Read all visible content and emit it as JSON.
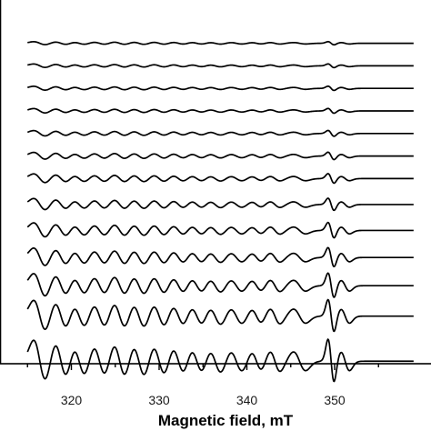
{
  "chart_data": {
    "type": "line",
    "title": "",
    "xlabel": "Magnetic field, mT",
    "ylabel": "",
    "xlim": [
      315,
      359
    ],
    "x_ticks": [
      320,
      330,
      340,
      350
    ],
    "grid": false,
    "legend": "none",
    "line_color": "#000000",
    "series": [
      {
        "offset": 13.0,
        "scale": 0.3
      },
      {
        "offset": 12.0,
        "scale": 0.35
      },
      {
        "offset": 11.0,
        "scale": 0.4
      },
      {
        "offset": 10.0,
        "scale": 0.45
      },
      {
        "offset": 9.0,
        "scale": 0.55
      },
      {
        "offset": 8.0,
        "scale": 0.7
      },
      {
        "offset": 7.0,
        "scale": 0.9
      },
      {
        "offset": 5.85,
        "scale": 1.15
      },
      {
        "offset": 4.7,
        "scale": 1.45
      },
      {
        "offset": 3.5,
        "scale": 1.8
      },
      {
        "offset": 2.25,
        "scale": 2.3
      },
      {
        "offset": 0.9,
        "scale": 3.0
      },
      {
        "offset": -1.1,
        "scale": 4.0
      }
    ],
    "lines": [
      {
        "center": 316.4,
        "amp": 1.0,
        "width": 0.7
      },
      {
        "center": 318.8,
        "amp": 0.9,
        "width": 0.7
      },
      {
        "center": 320.9,
        "amp": 0.75,
        "width": 0.7
      },
      {
        "center": 323.2,
        "amp": 0.75,
        "width": 0.7
      },
      {
        "center": 325.5,
        "amp": 0.85,
        "width": 0.7
      },
      {
        "center": 327.7,
        "amp": 0.8,
        "width": 0.7
      },
      {
        "center": 330.0,
        "amp": 0.75,
        "width": 0.7
      },
      {
        "center": 332.2,
        "amp": 0.7,
        "width": 0.7
      },
      {
        "center": 334.3,
        "amp": 0.65,
        "width": 0.7
      },
      {
        "center": 336.4,
        "amp": 0.6,
        "width": 0.7
      },
      {
        "center": 338.8,
        "amp": 0.5,
        "width": 0.7
      },
      {
        "center": 341.1,
        "amp": 0.45,
        "width": 0.6
      },
      {
        "center": 343.2,
        "amp": 0.5,
        "width": 0.6
      },
      {
        "center": 346.0,
        "amp": 0.45,
        "width": 0.7
      },
      {
        "center": 349.6,
        "amp": 1.05,
        "width": 0.35
      },
      {
        "center": 351.2,
        "amp": 0.45,
        "width": 0.5
      }
    ]
  }
}
